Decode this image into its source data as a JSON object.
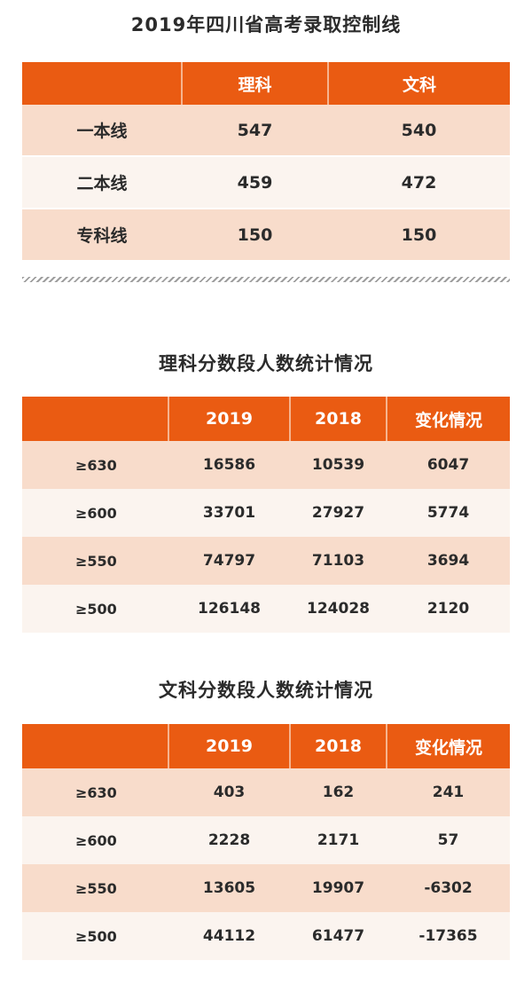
{
  "control_line": {
    "title": "2019年四川省高考录取控制线",
    "headers": [
      "",
      "理科",
      "文科"
    ],
    "rows": [
      [
        "一本线",
        "547",
        "540"
      ],
      [
        "二本线",
        "459",
        "472"
      ],
      [
        "专科线",
        "150",
        "150"
      ]
    ]
  },
  "science_stats": {
    "title": "理科分数段人数统计情况",
    "headers": [
      "",
      "2019",
      "2018",
      "变化情况"
    ],
    "rows": [
      [
        "≥630",
        "16586",
        "10539",
        "6047"
      ],
      [
        "≥600",
        "33701",
        "27927",
        "5774"
      ],
      [
        "≥550",
        "74797",
        "71103",
        "3694"
      ],
      [
        "≥500",
        "126148",
        "124028",
        "2120"
      ]
    ]
  },
  "arts_stats": {
    "title": "文科分数段人数统计情况",
    "headers": [
      "",
      "2019",
      "2018",
      "变化情况"
    ],
    "rows": [
      [
        "≥630",
        "403",
        "162",
        "241"
      ],
      [
        "≥600",
        "2228",
        "2171",
        "57"
      ],
      [
        "≥550",
        "13605",
        "19907",
        "-6302"
      ],
      [
        "≥500",
        "44112",
        "61477",
        "-17365"
      ]
    ]
  },
  "colors": {
    "header_bg": "#ea5b12",
    "row_odd": "#f8dccb",
    "row_even": "#fbf4ef"
  }
}
